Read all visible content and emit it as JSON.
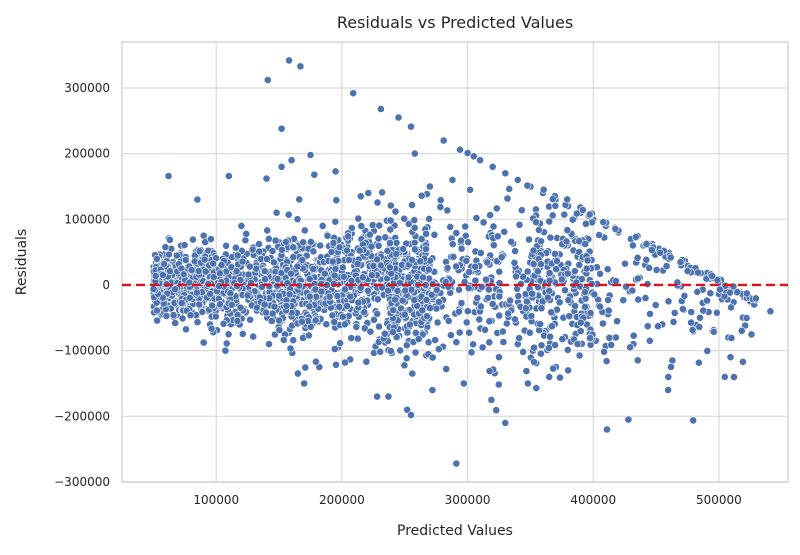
{
  "chart_data": {
    "type": "scatter",
    "title": "Residuals vs Predicted Values",
    "xlabel": "Predicted Values",
    "ylabel": "Residuals",
    "xlim": [
      25000,
      555000
    ],
    "ylim": [
      -300000,
      370000
    ],
    "xticks": [
      100000,
      200000,
      300000,
      400000,
      500000
    ],
    "yticks": [
      -300000,
      -200000,
      -100000,
      0,
      100000,
      200000,
      300000
    ],
    "xtick_labels": [
      "100000",
      "200000",
      "300000",
      "400000",
      "500000"
    ],
    "ytick_labels": [
      "−300000",
      "−200000",
      "−100000",
      "0",
      "100000",
      "200000",
      "300000"
    ],
    "grid": true,
    "reference_line": {
      "y": 0,
      "color": "#e0101a",
      "style": "dashed"
    },
    "point_color": "#4c72b0",
    "points": [
      [
        158000,
        342000
      ],
      [
        167000,
        333000
      ],
      [
        141000,
        312000
      ],
      [
        209000,
        292000
      ],
      [
        231000,
        268000
      ],
      [
        245000,
        255000
      ],
      [
        255000,
        241000
      ],
      [
        152000,
        238000
      ],
      [
        281000,
        220000
      ],
      [
        294000,
        206000
      ],
      [
        300000,
        201000
      ],
      [
        305000,
        196000
      ],
      [
        258000,
        200000
      ],
      [
        175000,
        198000
      ],
      [
        110000,
        166000
      ],
      [
        62000,
        166000
      ],
      [
        85000,
        130000
      ],
      [
        140000,
        162000
      ],
      [
        152000,
        180000
      ],
      [
        160000,
        190000
      ],
      [
        178000,
        168000
      ],
      [
        195000,
        173000
      ],
      [
        215000,
        135000
      ],
      [
        221000,
        140000
      ],
      [
        232000,
        141000
      ],
      [
        270000,
        150000
      ],
      [
        288000,
        160000
      ],
      [
        302000,
        145000
      ],
      [
        197000,
        -95000
      ],
      [
        165000,
        -135000
      ],
      [
        170000,
        -150000
      ],
      [
        237000,
        -170000
      ],
      [
        252000,
        -190000
      ],
      [
        255000,
        -198000
      ],
      [
        228000,
        -170000
      ],
      [
        330000,
        -210000
      ],
      [
        291000,
        -272000
      ],
      [
        411000,
        -220000
      ],
      [
        428000,
        -205000
      ],
      [
        541000,
        -40000
      ],
      [
        463000,
        -115000
      ],
      [
        380000,
        -130000
      ],
      [
        365000,
        -140000
      ],
      [
        348000,
        -150000
      ],
      [
        319000,
        -175000
      ],
      [
        297000,
        -150000
      ],
      [
        272000,
        -160000
      ],
      [
        283000,
        -128000
      ],
      [
        256000,
        -135000
      ],
      [
        182000,
        -125000
      ],
      [
        142000,
        -90000
      ],
      [
        95000,
        -60000
      ],
      [
        80000,
        -40000
      ],
      [
        60000,
        -20000
      ],
      [
        52000,
        20000
      ],
      [
        58000,
        35000
      ],
      [
        72000,
        60000
      ],
      [
        90000,
        75000
      ],
      [
        120000,
        90000
      ],
      [
        148000,
        110000
      ],
      [
        480000,
        20000
      ],
      [
        490000,
        12000
      ],
      [
        500000,
        5000
      ],
      [
        505000,
        0
      ],
      [
        510000,
        -5000
      ],
      [
        515000,
        -12000
      ],
      [
        520000,
        -18000
      ],
      [
        525000,
        -25000
      ],
      [
        470000,
        30000
      ],
      [
        460000,
        40000
      ],
      [
        450000,
        50000
      ],
      [
        440000,
        60000
      ],
      [
        430000,
        70000
      ],
      [
        420000,
        80000
      ],
      [
        410000,
        90000
      ],
      [
        400000,
        100000
      ],
      [
        390000,
        110000
      ],
      [
        380000,
        120000
      ],
      [
        370000,
        130000
      ],
      [
        360000,
        140000
      ],
      [
        350000,
        150000
      ],
      [
        340000,
        160000
      ],
      [
        330000,
        170000
      ],
      [
        320000,
        180000
      ],
      [
        310000,
        190000
      ],
      [
        495000,
        -70000
      ],
      [
        485000,
        -50000
      ],
      [
        472000,
        -38000
      ],
      [
        455000,
        -60000
      ],
      [
        445000,
        -85000
      ],
      [
        432000,
        -90000
      ],
      [
        418000,
        -80000
      ],
      [
        402000,
        -85000
      ],
      [
        395000,
        -60000
      ],
      [
        385000,
        -40000
      ],
      [
        372000,
        -20000
      ],
      [
        362000,
        -70000
      ],
      [
        352000,
        -100000
      ],
      [
        340000,
        -90000
      ],
      [
        325000,
        -110000
      ],
      [
        312000,
        -95000
      ]
    ]
  }
}
